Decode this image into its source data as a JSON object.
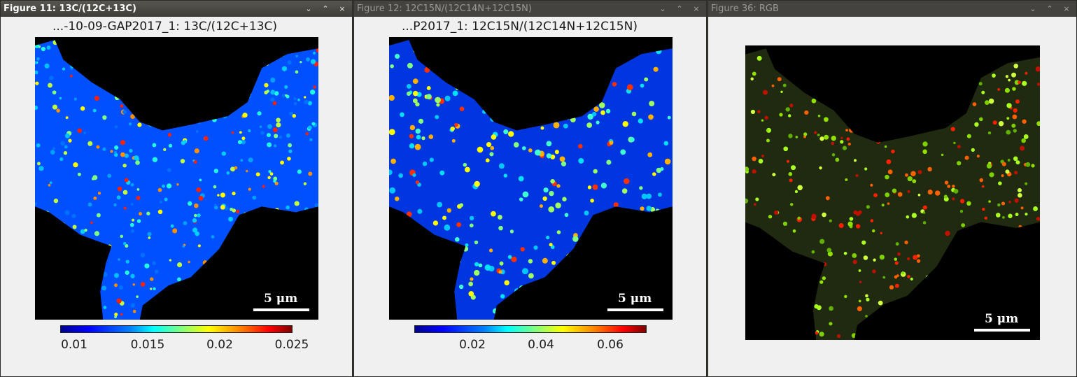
{
  "windows": [
    {
      "title": "Figure 11: 13C/(12C+13C)",
      "figure_title": "...-10-09-GAP2017_1: 13C/(12C+13C)",
      "scale_label": "5 μm",
      "colorbar_ticks": [
        "0.01",
        "0.015",
        "0.02",
        "0.025"
      ],
      "colormap": "jet",
      "active": true
    },
    {
      "title": "Figure 12: 12C15N/(12C14N+12C15N)",
      "figure_title": "...P2017_1: 12C15N/(12C14N+12C15N)",
      "scale_label": "5 μm",
      "colorbar_ticks": [
        "0.02",
        "0.04",
        "0.06"
      ],
      "colormap": "jet",
      "active": false
    },
    {
      "title": "Figure 36: RGB",
      "scale_label": "5 μm",
      "active": false
    }
  ],
  "window_controls": {
    "minimize": "⌄",
    "maximize": "⌃",
    "close": "×"
  },
  "colors": {
    "titlebar_active": "#3e3d39",
    "titlebar_inactive": "#44433f",
    "plot_bg": "#000000"
  }
}
